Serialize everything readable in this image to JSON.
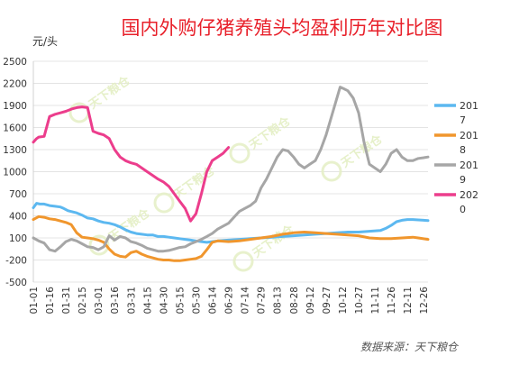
{
  "chart_data": {
    "type": "line",
    "title": "国内外购仔猪养殖头均盈利历年对比图",
    "ylabel": "元/头",
    "ylim": [
      -500,
      2500
    ],
    "yticks": [
      -500,
      -200,
      100,
      400,
      700,
      1000,
      1300,
      1600,
      1900,
      2200,
      2500
    ],
    "x_tick_labels": [
      "01-01",
      "01-16",
      "01-31",
      "02-15",
      "03-01",
      "03-16",
      "03-31",
      "04-15",
      "04-30",
      "05-15",
      "05-30",
      "06-14",
      "06-29",
      "07-14",
      "07-29",
      "08-13",
      "08-28",
      "09-12",
      "09-27",
      "10-12",
      "10-27",
      "11-11",
      "11-26",
      "12-11",
      "12-26"
    ],
    "x_note": "x values are day of year, 0 = 01-01",
    "grid": true,
    "legend_position": "right",
    "series": [
      {
        "name": "2017",
        "color": "#5cb8f0",
        "x": [
          0,
          3,
          6,
          10,
          15,
          20,
          25,
          28,
          32,
          40,
          45,
          50,
          55,
          60,
          65,
          70,
          75,
          80,
          85,
          90,
          95,
          100,
          105,
          110,
          115,
          120,
          125,
          130,
          135,
          140,
          145,
          150,
          155,
          160,
          170,
          180,
          190,
          200,
          210,
          220,
          230,
          240,
          250,
          260,
          270,
          280,
          290,
          300,
          310,
          320,
          325,
          330,
          335,
          340,
          345,
          350,
          355,
          360,
          364
        ],
        "y": [
          510,
          570,
          560,
          560,
          540,
          530,
          520,
          500,
          470,
          440,
          410,
          370,
          360,
          330,
          310,
          300,
          280,
          250,
          210,
          180,
          160,
          150,
          140,
          140,
          120,
          120,
          110,
          100,
          90,
          80,
          70,
          60,
          50,
          40,
          60,
          70,
          80,
          90,
          100,
          110,
          120,
          130,
          140,
          150,
          160,
          170,
          180,
          180,
          190,
          200,
          230,
          270,
          320,
          340,
          350,
          350,
          345,
          340,
          335
        ]
      },
      {
        "name": "2018",
        "color": "#f0962d",
        "x": [
          0,
          5,
          10,
          15,
          20,
          25,
          30,
          35,
          40,
          45,
          50,
          55,
          60,
          65,
          70,
          75,
          80,
          85,
          90,
          95,
          100,
          105,
          110,
          115,
          120,
          125,
          130,
          135,
          140,
          145,
          150,
          155,
          160,
          165,
          170,
          180,
          190,
          200,
          210,
          220,
          230,
          240,
          250,
          260,
          270,
          280,
          290,
          300,
          310,
          320,
          330,
          340,
          350,
          355,
          364
        ],
        "y": [
          350,
          390,
          380,
          360,
          350,
          330,
          310,
          280,
          170,
          110,
          100,
          90,
          70,
          40,
          -50,
          -120,
          -150,
          -160,
          -100,
          -80,
          -120,
          -150,
          -170,
          -190,
          -200,
          -200,
          -210,
          -210,
          -200,
          -190,
          -180,
          -150,
          -60,
          40,
          60,
          50,
          60,
          80,
          100,
          120,
          150,
          170,
          180,
          170,
          160,
          150,
          140,
          130,
          100,
          90,
          90,
          100,
          110,
          100,
          80
        ]
      },
      {
        "name": "2019",
        "color": "#a6a6a6",
        "x": [
          0,
          5,
          10,
          15,
          20,
          25,
          30,
          35,
          40,
          45,
          50,
          55,
          60,
          65,
          70,
          75,
          80,
          85,
          90,
          95,
          100,
          105,
          110,
          115,
          120,
          125,
          130,
          135,
          140,
          145,
          150,
          155,
          160,
          165,
          170,
          175,
          180,
          185,
          190,
          195,
          200,
          205,
          210,
          215,
          220,
          225,
          230,
          235,
          240,
          245,
          250,
          255,
          260,
          265,
          270,
          275,
          280,
          283,
          286,
          290,
          295,
          300,
          305,
          310,
          315,
          320,
          325,
          330,
          335,
          340,
          345,
          350,
          355,
          360,
          364
        ],
        "y": [
          100,
          60,
          30,
          -60,
          -80,
          -20,
          50,
          80,
          60,
          20,
          -20,
          -30,
          -60,
          -20,
          130,
          70,
          120,
          100,
          50,
          30,
          0,
          -40,
          -60,
          -80,
          -80,
          -70,
          -50,
          -30,
          -20,
          20,
          50,
          80,
          120,
          160,
          220,
          260,
          300,
          380,
          460,
          500,
          540,
          600,
          780,
          900,
          1050,
          1200,
          1300,
          1280,
          1200,
          1100,
          1050,
          1100,
          1150,
          1300,
          1500,
          1750,
          2000,
          2150,
          2130,
          2100,
          2000,
          1800,
          1400,
          1100,
          1050,
          1000,
          1100,
          1250,
          1300,
          1200,
          1150,
          1150,
          1180,
          1190,
          1200
        ]
      },
      {
        "name": "2020",
        "color": "#ec3d8c",
        "x": [
          0,
          3,
          5,
          10,
          15,
          20,
          25,
          30,
          35,
          40,
          45,
          50,
          55,
          60,
          65,
          70,
          75,
          80,
          85,
          90,
          95,
          100,
          105,
          110,
          115,
          120,
          125,
          130,
          135,
          140,
          145,
          150,
          155,
          160,
          165,
          170,
          175,
          180
        ],
        "y": [
          1400,
          1450,
          1470,
          1480,
          1750,
          1780,
          1800,
          1820,
          1850,
          1870,
          1880,
          1870,
          1550,
          1520,
          1500,
          1450,
          1300,
          1200,
          1150,
          1120,
          1100,
          1050,
          1000,
          950,
          900,
          860,
          800,
          700,
          600,
          500,
          330,
          430,
          700,
          1000,
          1150,
          1200,
          1250,
          1330
        ]
      }
    ]
  }
}
